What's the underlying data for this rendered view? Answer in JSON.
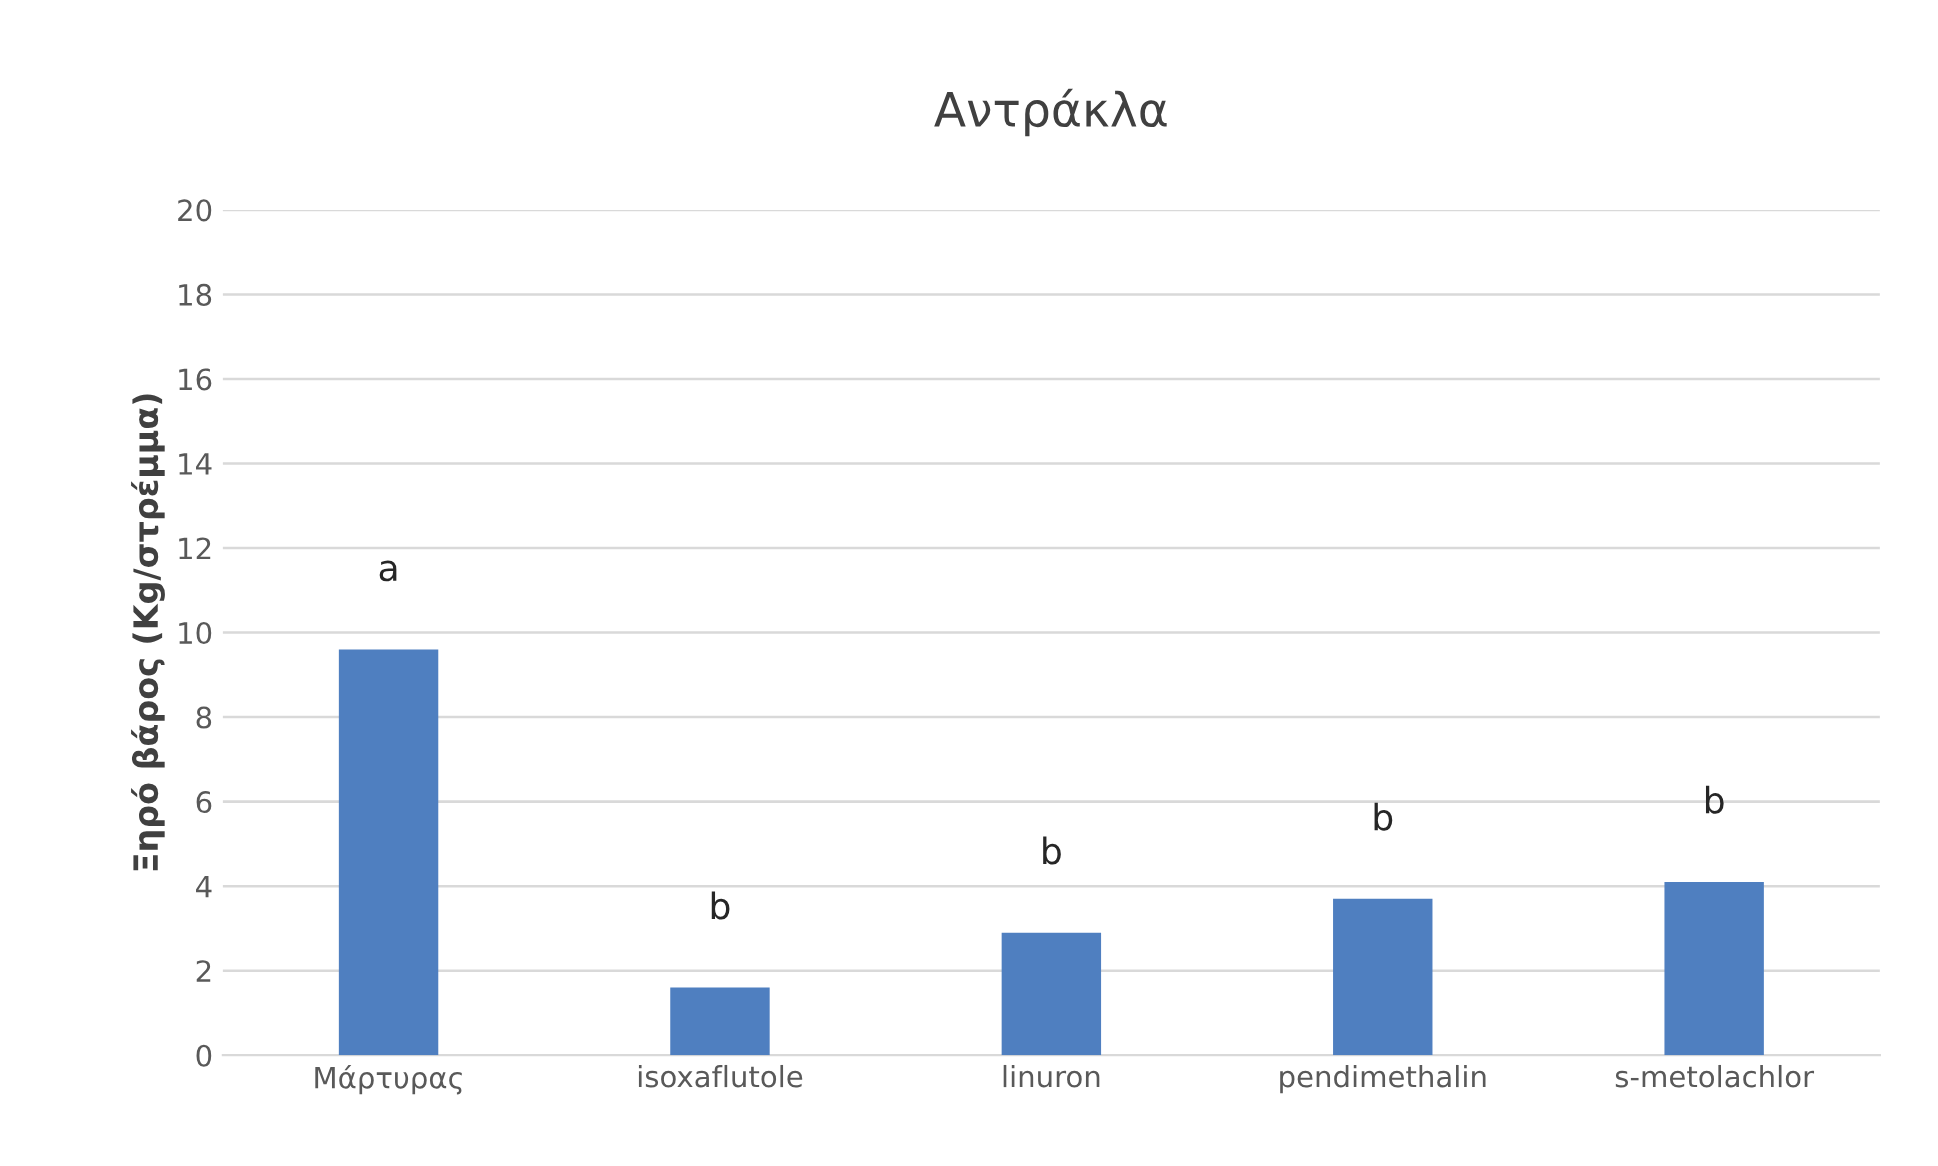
{
  "chart_data": {
    "type": "bar",
    "title": "Αντράκλα",
    "ylabel": "Ξηρό βάρος (Kg/στρέμμα)",
    "categories": [
      "Μάρτυρας",
      "isoxaflutole",
      "linuron",
      "pendimethalin",
      "s-metolachlor"
    ],
    "values": [
      9.6,
      1.6,
      2.9,
      3.7,
      4.1
    ],
    "color": "#4f7fc0",
    "ylim": [
      0,
      20
    ],
    "yticks": [
      0,
      2,
      4,
      6,
      8,
      10,
      12,
      14,
      16,
      18,
      20
    ],
    "grid": "y",
    "annotations": [
      "a",
      "b",
      "b",
      "b",
      "b"
    ]
  }
}
